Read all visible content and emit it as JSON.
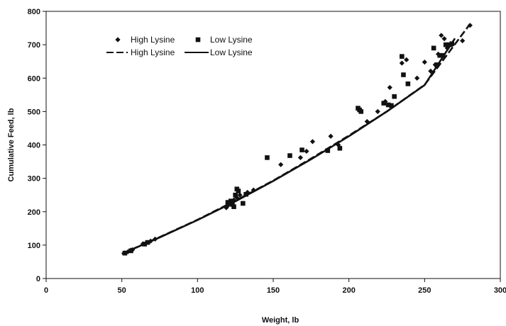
{
  "chart_data": {
    "type": "scatter",
    "xlabel": "Weight, lb",
    "ylabel": "Cumulative Feed, lb",
    "xlim": [
      0,
      300
    ],
    "ylim": [
      0,
      800
    ],
    "xticks": [
      0,
      50,
      100,
      150,
      200,
      250,
      300
    ],
    "xtick_labels": [
      "0",
      "50",
      "100",
      "150",
      "200",
      "250",
      "300"
    ],
    "yticks": [
      0,
      100,
      200,
      300,
      400,
      500,
      600,
      700,
      800
    ],
    "ytick_labels": [
      "0",
      "100",
      "200",
      "300",
      "400",
      "500",
      "600",
      "700",
      "800"
    ],
    "grid": false,
    "legend_placement": "top-left",
    "legend": [
      {
        "label": "High Lysine",
        "kind": "scatter",
        "marker": "diamond"
      },
      {
        "label": "Low Lysine",
        "kind": "scatter",
        "marker": "square"
      },
      {
        "label": "High Lysine",
        "kind": "line",
        "style": "dashed"
      },
      {
        "label": "Low Lysine",
        "kind": "line",
        "style": "solid"
      }
    ],
    "series": [
      {
        "name": "High Lysine",
        "kind": "scatter",
        "marker": "diamond",
        "points": [
          [
            52,
            77
          ],
          [
            54,
            80
          ],
          [
            56,
            85
          ],
          [
            57,
            86
          ],
          [
            64,
            104
          ],
          [
            66,
            106
          ],
          [
            69,
            112
          ],
          [
            72,
            118
          ],
          [
            119,
            212
          ],
          [
            120,
            218
          ],
          [
            122,
            227
          ],
          [
            124,
            235
          ],
          [
            126,
            242
          ],
          [
            128,
            250
          ],
          [
            133,
            258
          ],
          [
            137,
            265
          ],
          [
            155,
            341
          ],
          [
            168,
            362
          ],
          [
            172,
            381
          ],
          [
            176,
            410
          ],
          [
            188,
            426
          ],
          [
            193,
            400
          ],
          [
            212,
            470
          ],
          [
            219,
            500
          ],
          [
            224,
            530
          ],
          [
            227,
            572
          ],
          [
            235,
            645
          ],
          [
            238,
            655
          ],
          [
            245,
            600
          ],
          [
            250,
            648
          ],
          [
            254,
            621
          ],
          [
            257,
            640
          ],
          [
            259,
            672
          ],
          [
            261,
            728
          ],
          [
            263,
            718
          ],
          [
            265,
            690
          ],
          [
            268,
            700
          ],
          [
            275,
            712
          ],
          [
            280,
            758
          ]
        ]
      },
      {
        "name": "Low Lysine",
        "kind": "scatter",
        "marker": "square",
        "points": [
          [
            52,
            76
          ],
          [
            56,
            83
          ],
          [
            65,
            103
          ],
          [
            67,
            108
          ],
          [
            120,
            228
          ],
          [
            122,
            232
          ],
          [
            123,
            222
          ],
          [
            124,
            215
          ],
          [
            125,
            250
          ],
          [
            126,
            268
          ],
          [
            127,
            262
          ],
          [
            130,
            225
          ],
          [
            132,
            252
          ],
          [
            146,
            362
          ],
          [
            161,
            368
          ],
          [
            169,
            385
          ],
          [
            186,
            383
          ],
          [
            194,
            390
          ],
          [
            206,
            510
          ],
          [
            207,
            505
          ],
          [
            208,
            500
          ],
          [
            223,
            525
          ],
          [
            226,
            520
          ],
          [
            228,
            518
          ],
          [
            230,
            545
          ],
          [
            235,
            665
          ],
          [
            236,
            610
          ],
          [
            239,
            583
          ],
          [
            256,
            690
          ],
          [
            258,
            640
          ],
          [
            260,
            668
          ],
          [
            262,
            668
          ],
          [
            264,
            700
          ],
          [
            266,
            700
          ],
          [
            268,
            703
          ]
        ]
      },
      {
        "name": "High Lysine",
        "kind": "line",
        "style": "dashed",
        "x": [
          50,
          75,
          100,
          125,
          150,
          175,
          200,
          225,
          250,
          280
        ],
        "y": [
          74,
          124,
          176,
          233,
          293,
          359,
          428,
          500,
          580,
          762
        ]
      },
      {
        "name": "Low Lysine",
        "kind": "line",
        "style": "solid",
        "x": [
          50,
          75,
          100,
          125,
          150,
          175,
          200,
          225,
          250,
          270
        ],
        "y": [
          74,
          123,
          175,
          231,
          292,
          357,
          426,
          500,
          579,
          719
        ]
      }
    ]
  }
}
